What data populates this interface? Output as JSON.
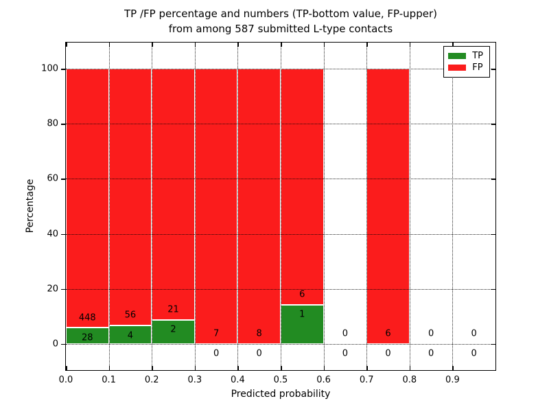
{
  "chart_data": {
    "type": "bar",
    "stacked": true,
    "title_lines": [
      "TP /FP percentage and numbers (TP-bottom value, FP-upper)",
      "from among 587 submitted L-type contacts"
    ],
    "xlabel": "Predicted probability",
    "ylabel": "Percentage",
    "x_tick_labels": [
      "0.0",
      "0.1",
      "0.2",
      "0.3",
      "0.4",
      "0.5",
      "0.6",
      "0.7",
      "0.8",
      "0.9"
    ],
    "y_tick_values": [
      0,
      20,
      40,
      60,
      80,
      100
    ],
    "xlim": [
      0.0,
      1.0
    ],
    "ylim": [
      -9.5,
      109.5
    ],
    "bin_width": 0.1,
    "grid": "dotted",
    "units": "percent of bin total; labels show raw counts",
    "bins": [
      {
        "x_start": 0.0,
        "tp": 28,
        "fp": 448
      },
      {
        "x_start": 0.1,
        "tp": 4,
        "fp": 56
      },
      {
        "x_start": 0.2,
        "tp": 2,
        "fp": 21
      },
      {
        "x_start": 0.3,
        "tp": 0,
        "fp": 7
      },
      {
        "x_start": 0.4,
        "tp": 0,
        "fp": 8
      },
      {
        "x_start": 0.5,
        "tp": 1,
        "fp": 6
      },
      {
        "x_start": 0.6,
        "tp": 0,
        "fp": 0
      },
      {
        "x_start": 0.7,
        "tp": 0,
        "fp": 6
      },
      {
        "x_start": 0.8,
        "tp": 0,
        "fp": 0
      },
      {
        "x_start": 0.9,
        "tp": 0,
        "fp": 0
      }
    ],
    "legend": {
      "position": "upper right",
      "entries": [
        {
          "label": "TP",
          "color": "#228b22"
        },
        {
          "label": "FP",
          "color": "#fb1c1c"
        }
      ]
    }
  }
}
